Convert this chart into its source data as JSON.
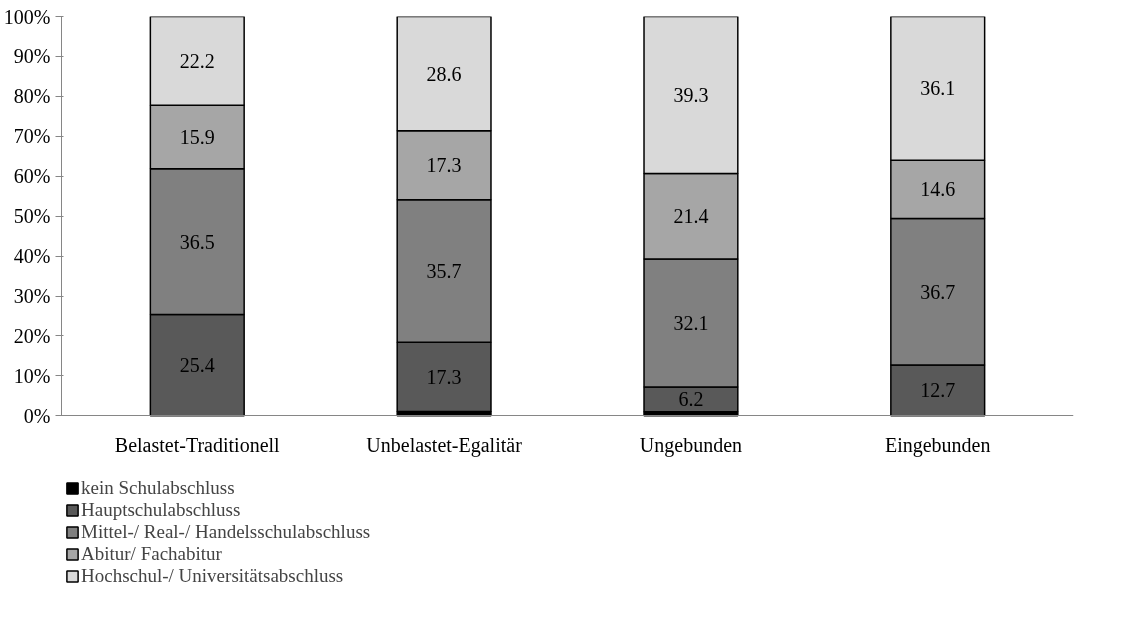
{
  "chart_data": {
    "type": "bar",
    "stacked": true,
    "categories": [
      "Belastet-Traditionell",
      "Unbelastet-Egalitär",
      "Ungebunden",
      "Eingebunden"
    ],
    "series": [
      {
        "name": "kein Schulabschluss",
        "color": "#000000",
        "values": [
          null,
          1.1,
          1.0,
          null
        ],
        "value_labels": [
          null,
          null,
          null,
          null
        ]
      },
      {
        "name": "Hauptschulabschluss",
        "color": "#595959",
        "values": [
          25.4,
          17.3,
          6.2,
          12.7
        ],
        "value_labels": [
          "25.4",
          "17.3",
          "6.2",
          "12.7"
        ]
      },
      {
        "name": "Mittel-/ Real-/ Handelsschulabschluss",
        "color": "#808080",
        "values": [
          36.5,
          35.7,
          32.1,
          36.7
        ],
        "value_labels": [
          "36.5",
          "35.7",
          "32.1",
          "36.7"
        ]
      },
      {
        "name": "Abitur/ Fachabitur",
        "color": "#a6a6a6",
        "values": [
          15.9,
          17.3,
          21.4,
          14.6
        ],
        "value_labels": [
          "15.9",
          "17.3",
          "21.4",
          "14.6"
        ]
      },
      {
        "name": "Hochschul-/ Universitätsabschluss",
        "color": "#d9d9d9",
        "values": [
          22.2,
          28.6,
          39.3,
          36.1
        ],
        "value_labels": [
          "22.2",
          "28.6",
          "39.3",
          "36.1"
        ]
      }
    ],
    "ylim": [
      0,
      100
    ],
    "yticks": [
      {
        "value": 0,
        "label": "0%"
      },
      {
        "value": 10,
        "label": "10%"
      },
      {
        "value": 20,
        "label": "20%"
      },
      {
        "value": 30,
        "label": "30%"
      },
      {
        "value": 40,
        "label": "40%"
      },
      {
        "value": 50,
        "label": "50%"
      },
      {
        "value": 60,
        "label": "60%"
      },
      {
        "value": 70,
        "label": "70%"
      },
      {
        "value": 80,
        "label": "80%"
      },
      {
        "value": 90,
        "label": "90%"
      },
      {
        "value": 100,
        "label": "100%"
      }
    ],
    "grid": false,
    "legend": "bottom left"
  }
}
